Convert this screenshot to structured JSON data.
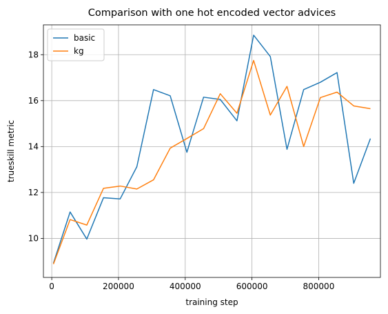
{
  "chart_data": {
    "type": "line",
    "title": "Comparison with one hot encoded vector advices",
    "xlabel": "training step",
    "ylabel": "trueskill metric",
    "xlim": [
      -25000,
      985000
    ],
    "ylim": [
      8.3,
      19.3
    ],
    "xticks": [
      0,
      200000,
      400000,
      600000,
      800000
    ],
    "xtick_labels": [
      "0",
      "200000",
      "400000",
      "600000",
      "800000"
    ],
    "yticks": [
      10,
      12,
      14,
      16,
      18
    ],
    "ytick_labels": [
      "10",
      "12",
      "14",
      "16",
      "18"
    ],
    "grid": true,
    "legend_position": "top-left",
    "x": [
      5000,
      55000,
      105000,
      155000,
      205000,
      255000,
      305000,
      355000,
      405000,
      455000,
      505000,
      555000,
      605000,
      655000,
      705000,
      755000,
      805000,
      855000,
      905000,
      955000
    ],
    "series": [
      {
        "name": "basic",
        "color": "#1f77b4",
        "values": [
          8.92,
          11.15,
          9.97,
          11.77,
          11.72,
          13.12,
          16.48,
          16.21,
          13.75,
          16.15,
          16.05,
          15.12,
          18.85,
          17.92,
          13.88,
          16.48,
          16.8,
          17.22,
          12.4,
          14.35
        ]
      },
      {
        "name": "kg",
        "color": "#ff7f0e",
        "values": [
          8.88,
          10.82,
          10.58,
          12.18,
          12.28,
          12.15,
          12.55,
          13.93,
          14.35,
          14.78,
          16.3,
          15.45,
          17.75,
          15.37,
          16.62,
          14.0,
          16.13,
          16.37,
          15.77,
          15.65
        ]
      }
    ]
  }
}
